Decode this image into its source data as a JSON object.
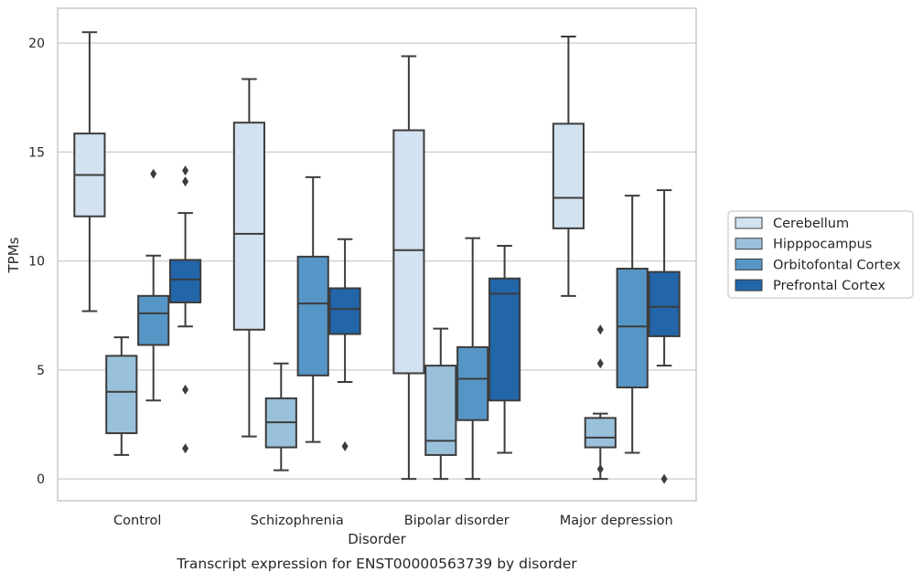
{
  "chart_data": {
    "type": "box",
    "title": "",
    "caption": "Transcript expression for ENST00000563739 by disorder",
    "xlabel": "Disorder",
    "ylabel": "TPMs",
    "ylim": [
      -1,
      21.6
    ],
    "yticks": [
      0,
      5,
      10,
      15,
      20
    ],
    "grid": "horizontal",
    "legend_position": "right",
    "categories": [
      "Control",
      "Schizophrenia",
      "Bipolar disorder",
      "Major depression"
    ],
    "series": [
      {
        "name": "Cerebellum",
        "color": "#d3e2f0",
        "boxes": [
          {
            "whisker_low": 7.7,
            "q1": 12.05,
            "median": 13.95,
            "q3": 15.85,
            "whisker_high": 20.5,
            "outliers": []
          },
          {
            "whisker_low": 1.95,
            "q1": 6.85,
            "median": 11.25,
            "q3": 16.35,
            "whisker_high": 18.35,
            "outliers": []
          },
          {
            "whisker_low": 0.0,
            "q1": 4.85,
            "median": 10.5,
            "q3": 16.0,
            "whisker_high": 19.4,
            "outliers": []
          },
          {
            "whisker_low": 8.4,
            "q1": 11.5,
            "median": 12.9,
            "q3": 16.3,
            "whisker_high": 20.3,
            "outliers": []
          }
        ]
      },
      {
        "name": "Hipppocampus",
        "color": "#9ac1dc",
        "boxes": [
          {
            "whisker_low": 1.1,
            "q1": 2.1,
            "median": 4.0,
            "q3": 5.65,
            "whisker_high": 6.5,
            "outliers": []
          },
          {
            "whisker_low": 0.4,
            "q1": 1.45,
            "median": 2.6,
            "q3": 3.7,
            "whisker_high": 5.3,
            "outliers": []
          },
          {
            "whisker_low": 0.0,
            "q1": 1.1,
            "median": 1.75,
            "q3": 5.2,
            "whisker_high": 6.9,
            "outliers": []
          },
          {
            "whisker_low": 0.0,
            "q1": 1.45,
            "median": 1.9,
            "q3": 2.8,
            "whisker_high": 3.0,
            "outliers": [
              0.45,
              5.3,
              6.85
            ]
          }
        ]
      },
      {
        "name": "Orbitofontal Cortex",
        "color": "#5696c6",
        "boxes": [
          {
            "whisker_low": 3.6,
            "q1": 6.15,
            "median": 7.6,
            "q3": 8.4,
            "whisker_high": 10.25,
            "outliers": [
              14.0
            ]
          },
          {
            "whisker_low": 1.7,
            "q1": 4.75,
            "median": 8.05,
            "q3": 10.2,
            "whisker_high": 13.85,
            "outliers": []
          },
          {
            "whisker_low": 0.0,
            "q1": 2.7,
            "median": 4.6,
            "q3": 6.05,
            "whisker_high": 11.05,
            "outliers": []
          },
          {
            "whisker_low": 1.2,
            "q1": 4.2,
            "median": 7.0,
            "q3": 9.65,
            "whisker_high": 13.0,
            "outliers": []
          }
        ]
      },
      {
        "name": "Prefrontal Cortex",
        "color": "#2265a9",
        "boxes": [
          {
            "whisker_low": 7.0,
            "q1": 8.1,
            "median": 9.15,
            "q3": 10.05,
            "whisker_high": 12.2,
            "outliers": [
              14.15,
              13.65,
              4.1,
              1.4
            ]
          },
          {
            "whisker_low": 4.45,
            "q1": 6.65,
            "median": 7.8,
            "q3": 8.75,
            "whisker_high": 11.0,
            "outliers": [
              1.5
            ]
          },
          {
            "whisker_low": 1.2,
            "q1": 3.6,
            "median": 8.5,
            "q3": 9.2,
            "whisker_high": 10.7,
            "outliers": []
          },
          {
            "whisker_low": 5.2,
            "q1": 6.55,
            "median": 7.9,
            "q3": 9.5,
            "whisker_high": 13.25,
            "outliers": [
              0.0
            ]
          }
        ]
      }
    ]
  }
}
